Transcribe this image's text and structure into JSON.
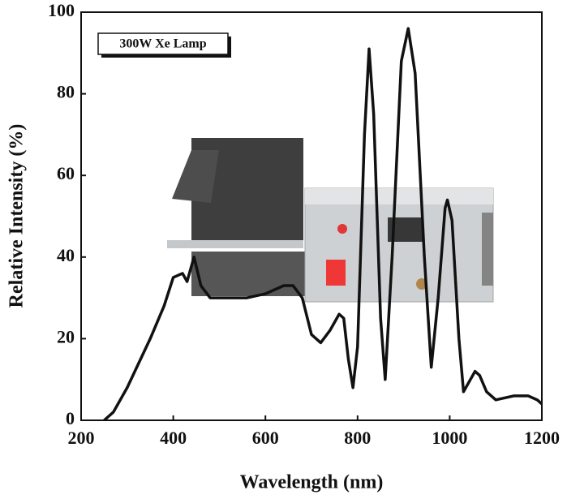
{
  "chart_data": {
    "type": "line",
    "annotation": "300W Xe Lamp",
    "xlabel": "Wavelength (nm)",
    "ylabel": "Relative Intensity (%)",
    "x": [
      250,
      270,
      300,
      350,
      380,
      400,
      420,
      430,
      445,
      460,
      480,
      520,
      560,
      600,
      640,
      660,
      680,
      700,
      720,
      740,
      760,
      770,
      780,
      790,
      800,
      815,
      825,
      835,
      850,
      860,
      875,
      895,
      910,
      925,
      945,
      960,
      975,
      990,
      995,
      1005,
      1020,
      1030,
      1045,
      1055,
      1065,
      1080,
      1100,
      1140,
      1170,
      1190,
      1200
    ],
    "series": [
      {
        "color": "#111111",
        "values": [
          0,
          2,
          8,
          20,
          28,
          35,
          36,
          34,
          40,
          33,
          30,
          30,
          30,
          31,
          33,
          33,
          30,
          21,
          19,
          22,
          26,
          25,
          15,
          8,
          18,
          70,
          91,
          75,
          25,
          10,
          40,
          88,
          96,
          85,
          40,
          13,
          30,
          52,
          54,
          49,
          20,
          7,
          10,
          12,
          11,
          7,
          5,
          6,
          6,
          5,
          4
        ]
      }
    ],
    "xlim": [
      200,
      1200
    ],
    "ylim": [
      0,
      100
    ],
    "xticks": [
      200,
      400,
      600,
      800,
      1000,
      1200
    ],
    "yticks": [
      0,
      20,
      40,
      60,
      80,
      100
    ]
  }
}
